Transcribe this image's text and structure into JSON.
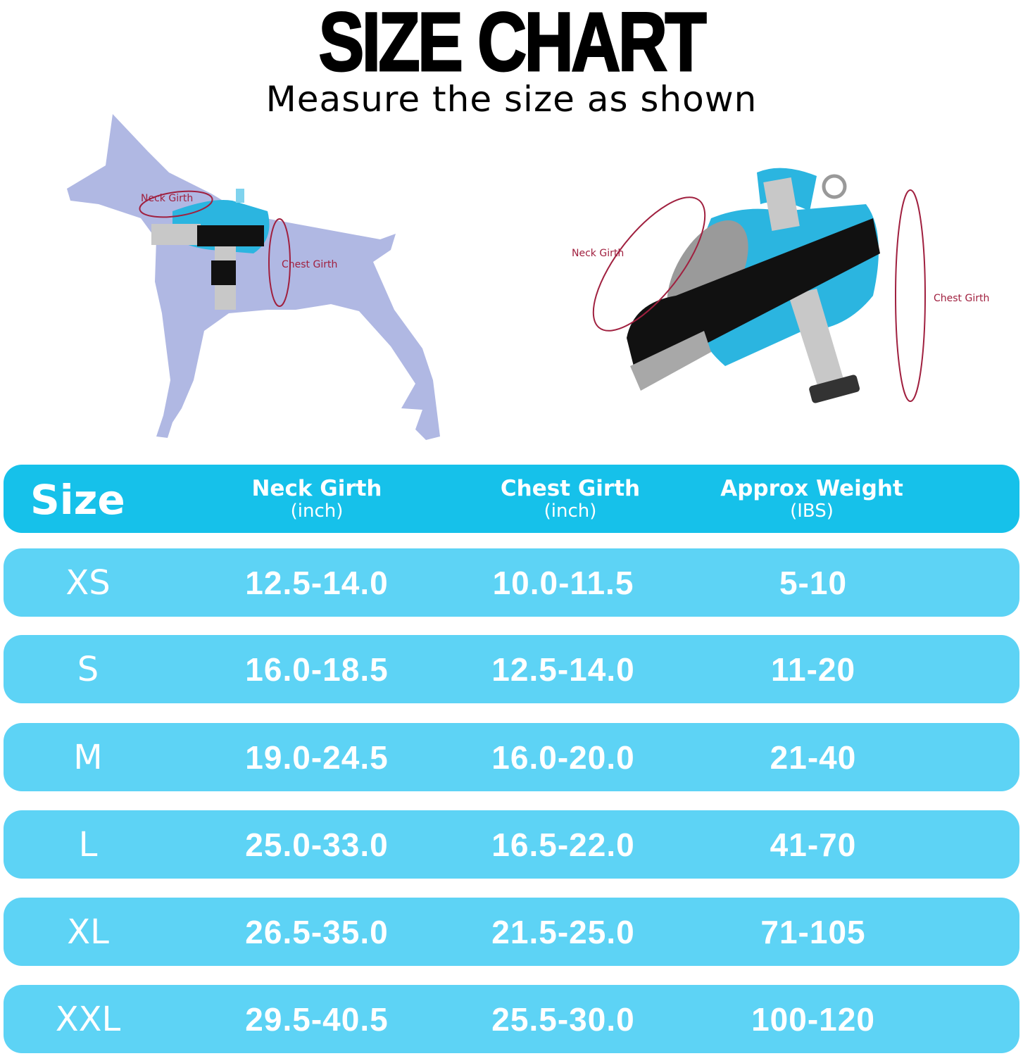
{
  "header": {
    "title": "SIZE CHART",
    "subtitle": "Measure the size as shown"
  },
  "illustrations": {
    "dog_labels": {
      "neck": "Neck Girth",
      "chest": "Chest Girth"
    },
    "harness_labels": {
      "neck": "Neck Girth",
      "chest": "Chest Girth"
    }
  },
  "colors": {
    "header_row": "#16c1ea",
    "data_row": "#5dd3f5",
    "dog_silhouette": "#b0b8e3",
    "measure_line": "#a0203f",
    "harness": "#2bb5e0"
  },
  "table": {
    "columns": [
      {
        "label": "Size",
        "unit": ""
      },
      {
        "label": "Neck Girth",
        "unit": "(inch)"
      },
      {
        "label": "Chest Girth",
        "unit": "(inch)"
      },
      {
        "label": "Approx Weight",
        "unit": "(IBS)"
      }
    ],
    "rows": [
      {
        "size": "XS",
        "neck": "12.5-14.0",
        "chest": "10.0-11.5",
        "weight": "5-10"
      },
      {
        "size": "S",
        "neck": "16.0-18.5",
        "chest": "12.5-14.0",
        "weight": "11-20"
      },
      {
        "size": "M",
        "neck": "19.0-24.5",
        "chest": "16.0-20.0",
        "weight": "21-40"
      },
      {
        "size": "L",
        "neck": "25.0-33.0",
        "chest": "16.5-22.0",
        "weight": "41-70"
      },
      {
        "size": "XL",
        "neck": "26.5-35.0",
        "chest": "21.5-25.0",
        "weight": "71-105"
      },
      {
        "size": "XXL",
        "neck": "29.5-40.5",
        "chest": "25.5-30.0",
        "weight": "100-120"
      }
    ]
  }
}
